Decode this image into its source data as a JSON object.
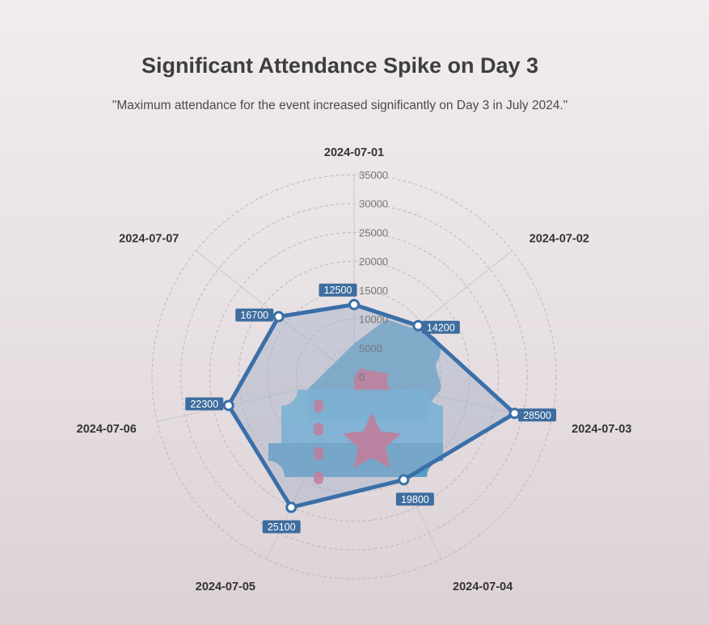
{
  "header": {
    "title": "Significant Attendance Spike on Day 3",
    "subtitle": "\"Maximum attendance for the event increased significantly on Day 3 in July 2024.\""
  },
  "colors": {
    "series_line": "#3a6fa8",
    "series_fill": "#a5b0c7",
    "label_bg": "#3e6d9e",
    "ticket_dark": "#4f9cc7",
    "ticket_light": "#5bb4de",
    "star": "#d9577a"
  },
  "chart_data": {
    "type": "radar",
    "title": "Significant Attendance Spike on Day 3",
    "subtitle": "\"Maximum attendance for the event increased significantly on Day 3 in July 2024.\"",
    "categories": [
      "2024-07-01",
      "2024-07-02",
      "2024-07-03",
      "2024-07-04",
      "2024-07-05",
      "2024-07-06",
      "2024-07-07"
    ],
    "values": [
      12500,
      14200,
      28500,
      19800,
      25100,
      22300,
      16700
    ],
    "radial_ticks": [
      0,
      5000,
      10000,
      15000,
      20000,
      25000,
      30000,
      35000
    ],
    "range": [
      0,
      35000
    ],
    "grid": true,
    "legend": "none",
    "decoration": "ticket-icon"
  }
}
